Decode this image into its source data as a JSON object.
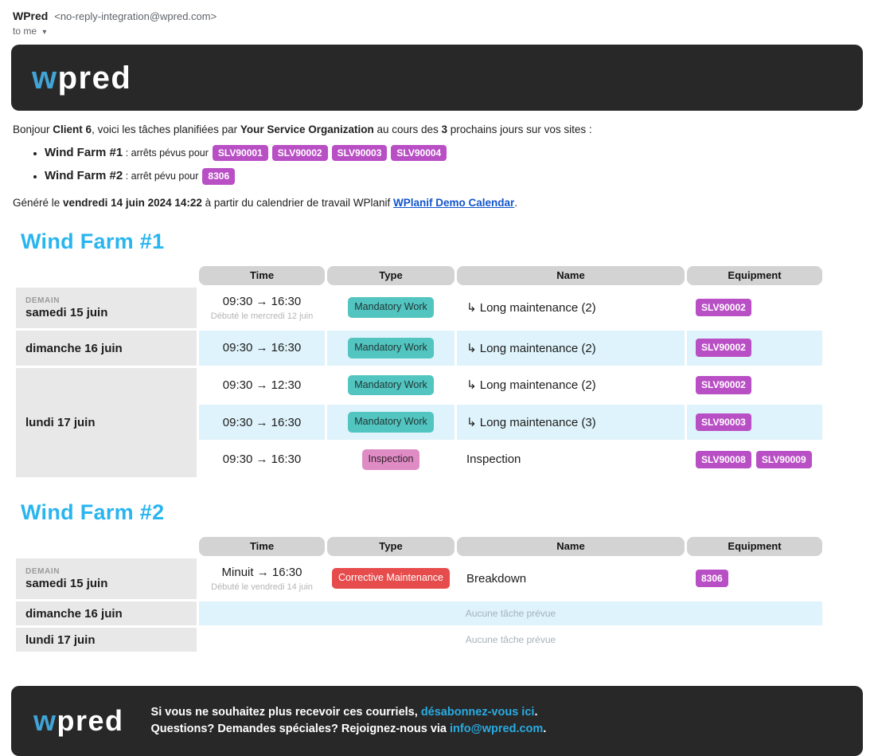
{
  "email_header": {
    "sender_name": "WPred",
    "sender_address": "<no-reply-integration@wpred.com>",
    "recipient": "to me",
    "dropdown_icon": "▾"
  },
  "brand": {
    "logo_w": "w",
    "logo_rest": "pred",
    "banner_bg": "#282828",
    "logo_blue": "#41a3d6",
    "heading_blue": "#29b5f0",
    "equipment_badge_color": "#b94fc5",
    "stripe_color": "#def3fb"
  },
  "intro": {
    "prefix": "Bonjour ",
    "client": "Client 6",
    "mid1": ", voici les tâches planifiées par ",
    "org": "Your Service Organization",
    "mid2": " au cours des ",
    "days": "3",
    "suffix": " prochains jours sur vos sites :"
  },
  "site_summary": [
    {
      "name": "Wind Farm #1",
      "sep": " : ",
      "text": "arrêts pévus pour",
      "badges": [
        "SLV90001",
        "SLV90002",
        "SLV90003",
        "SLV90004"
      ]
    },
    {
      "name": "Wind Farm #2",
      "sep": " : ",
      "text": "arrêt pévu pour",
      "badges": [
        "8306"
      ]
    }
  ],
  "generated": {
    "prefix": "Généré le ",
    "datetime": "vendredi 14 juin 2024 14:22",
    "mid": " à partir du calendrier de travail WPlanif ",
    "link": "WPlanif Demo Calendar",
    "suffix": "."
  },
  "columns": [
    "Time",
    "Type",
    "Name",
    "Equipment"
  ],
  "type_styles": {
    "Mandatory Work": {
      "bg": "#52c5c0",
      "fg": "#1f3434"
    },
    "Inspection": {
      "bg": "#df8cc5",
      "fg": "#33202c"
    },
    "Corrective Maintenance": {
      "bg": "#e74c4c",
      "fg": "#ffffff"
    }
  },
  "farms": [
    {
      "title": "Wind Farm #1",
      "days": [
        {
          "label_small": "DEMAIN",
          "date": "samedi 15 juin",
          "tasks": [
            {
              "time": "09:30 → 16:30",
              "time_note": "Débuté le mercredi 12 juin",
              "type": "Mandatory Work",
              "name": "↳ Long maintenance (2)",
              "equipment": [
                "SLV90002"
              ]
            }
          ]
        },
        {
          "date": "dimanche 16 juin",
          "tasks": [
            {
              "time": "09:30 → 16:30",
              "type": "Mandatory Work",
              "name": "↳ Long maintenance (2)",
              "equipment": [
                "SLV90002"
              ]
            }
          ]
        },
        {
          "date": "lundi 17 juin",
          "tasks": [
            {
              "time": "09:30 → 12:30",
              "type": "Mandatory Work",
              "name": "↳ Long maintenance (2)",
              "equipment": [
                "SLV90002"
              ]
            },
            {
              "time": "09:30 → 16:30",
              "type": "Mandatory Work",
              "name": "↳ Long maintenance (3)",
              "equipment": [
                "SLV90003"
              ]
            },
            {
              "time": "09:30 → 16:30",
              "type": "Inspection",
              "name": "Inspection",
              "equipment": [
                "SLV90008",
                "SLV90009"
              ]
            }
          ]
        }
      ]
    },
    {
      "title": "Wind Farm #2",
      "days": [
        {
          "label_small": "DEMAIN",
          "date": "samedi 15 juin",
          "tasks": [
            {
              "time": "Minuit → 16:30",
              "time_note": "Débuté le vendredi 14 juin",
              "type": "Corrective Maintenance",
              "name": "Breakdown",
              "equipment": [
                "8306"
              ]
            }
          ]
        },
        {
          "date": "dimanche 16 juin",
          "tasks": [],
          "empty_text": "Aucune tâche prévue"
        },
        {
          "date": "lundi 17 juin",
          "tasks": [],
          "empty_text": "Aucune tâche prévue"
        }
      ]
    }
  ],
  "footer": {
    "line1_prefix": "Si vous ne souhaitez plus recevoir ces courriels, ",
    "line1_link": "désabonnez-vous ici",
    "line1_suffix": ".",
    "line2_prefix": "Questions? Demandes spéciales? Rejoignez-nous via ",
    "line2_link": "info@wpred.com",
    "line2_suffix": "."
  }
}
